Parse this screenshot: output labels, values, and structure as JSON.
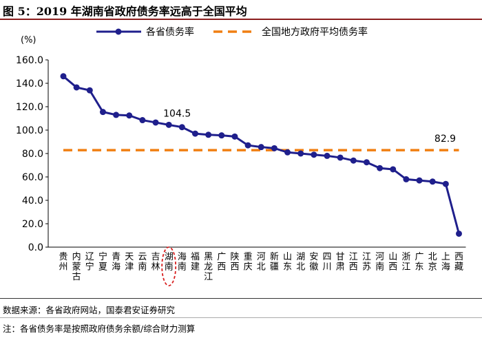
{
  "figure": {
    "title": "图 5：2019 年湖南省政府债务率远高于全国平均",
    "source_note": "数据来源：各省政府网站，国泰君安证券研究",
    "note": "注：各省债务率是按照政府债务余额/综合财力测算"
  },
  "chart_data": {
    "type": "line",
    "y_unit_label": "(%)",
    "ylim": [
      0,
      160
    ],
    "yticks": [
      "0.0",
      "20.0",
      "40.0",
      "60.0",
      "80.0",
      "100.0",
      "120.0",
      "140.0",
      "160.0"
    ],
    "grid": false,
    "legend_position": "top",
    "categories": [
      "贵州",
      "内蒙古",
      "辽宁",
      "宁夏",
      "青海",
      "天津",
      "云南",
      "吉林",
      "湖南",
      "海南",
      "福建",
      "黑龙江",
      "广西",
      "陕西",
      "重庆",
      "河北",
      "新疆",
      "山东",
      "湖北",
      "安徽",
      "四川",
      "甘肃",
      "江西",
      "江苏",
      "河南",
      "山西",
      "浙江",
      "广东",
      "北京",
      "上海",
      "西藏"
    ],
    "series": [
      {
        "name": "各省债务率",
        "color": "#1f1f8c",
        "marker": "circle",
        "values": [
          146.0,
          136.5,
          134.0,
          115.5,
          113.0,
          112.5,
          108.5,
          106.5,
          104.5,
          102.5,
          97.0,
          96.0,
          95.5,
          94.5,
          87.0,
          85.5,
          84.5,
          81.0,
          80.0,
          79.0,
          78.0,
          76.5,
          74.0,
          72.5,
          67.5,
          66.5,
          58.0,
          57.0,
          56.0,
          54.0,
          11.5
        ]
      },
      {
        "name": "全国地方政府平均债务率",
        "color": "#f07f12",
        "style": "dashed",
        "value": 82.9
      }
    ],
    "annotations": [
      {
        "text": "104.5",
        "category": "湖南",
        "value": 104.5
      },
      {
        "text": "82.9",
        "category": "西藏",
        "value": 82.9
      }
    ],
    "highlight": {
      "category": "湖南",
      "shape": "dashed-ellipse",
      "color": "#d81e1e"
    }
  }
}
